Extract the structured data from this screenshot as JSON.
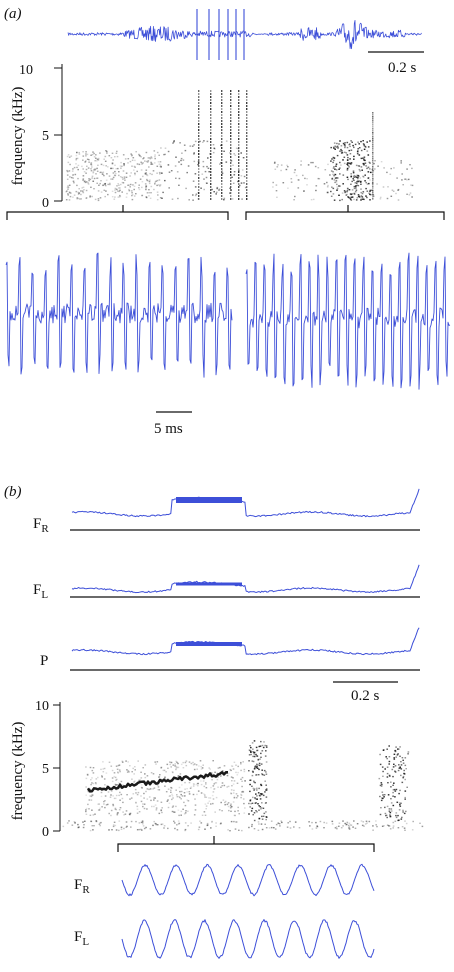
{
  "panel_a": {
    "label": "(a)",
    "scale_time": "0.2 s",
    "scale_short": "5 ms",
    "spectrogram": {
      "ylabel": "frequency (kHz)",
      "ticks": [
        "10",
        "5",
        "0"
      ]
    }
  },
  "panel_b": {
    "label": "(b)",
    "traces": {
      "fr_main": "F",
      "fr_sub": "R",
      "fl_main": "F",
      "fl_sub": "L",
      "p": "P"
    },
    "scale_time": "0.2 s",
    "spectrogram": {
      "ylabel": "frequency (kHz)",
      "ticks": [
        "10",
        "5",
        "0"
      ]
    },
    "zoom": {
      "fr_main": "F",
      "fr_sub": "R",
      "fl_main": "F",
      "fl_sub": "L"
    }
  },
  "colors": {
    "trace": "#3d4fd8",
    "axis": "#111111",
    "spectro_ink": "#1a1a1a"
  }
}
